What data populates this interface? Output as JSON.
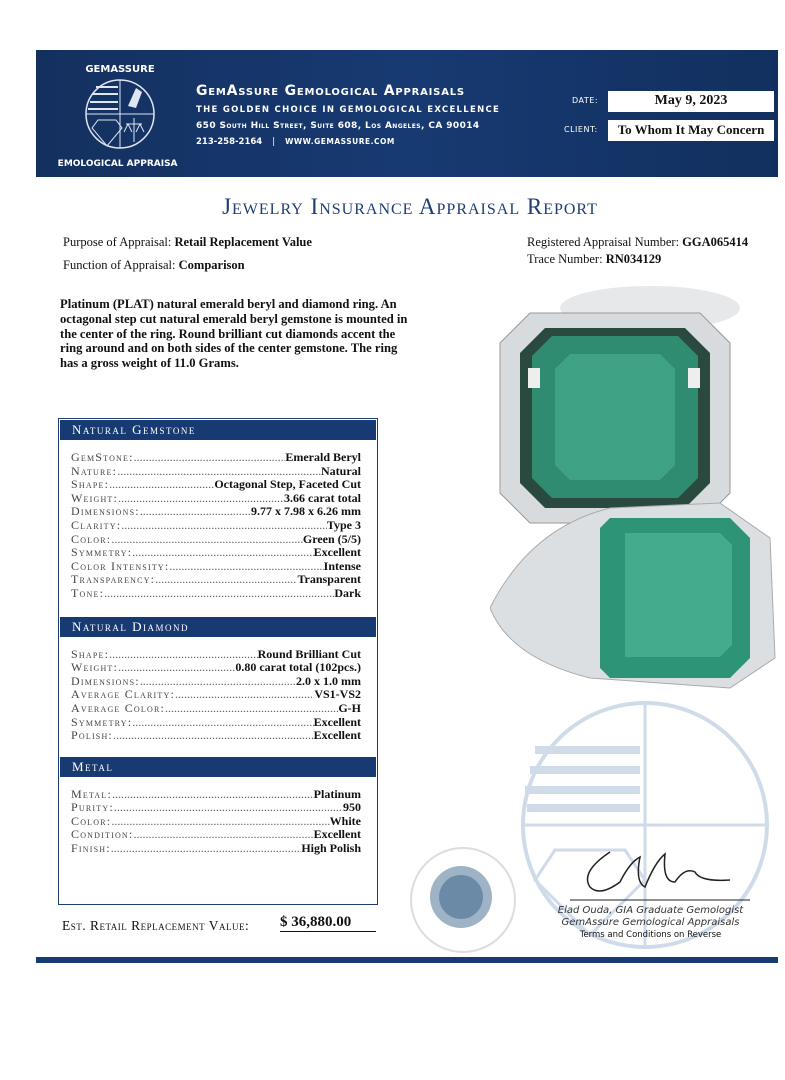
{
  "header": {
    "logo_text": "GemAssure Gemological Appraisals",
    "company": "GemAssure Gemological Appraisals",
    "tagline": "The Golden Choice in Gemological Excellence",
    "address": "650 South Hill Street, Suite 608, Los Angeles, CA 90014",
    "phone": "213-258-2164",
    "separator": "|",
    "website": "www.gemassure.com",
    "date_label": "DATE:",
    "date": "May 9, 2023",
    "client_label": "CLIENT:",
    "client": "To Whom It May Concern",
    "color": "#173a72"
  },
  "title": "Jewelry Insurance Appraisal Report",
  "meta": {
    "purpose_label": "Purpose of Appraisal:",
    "purpose": "Retail Replacement Value",
    "function_label": "Function of Appraisal:",
    "function": "Comparison",
    "reg_label": "Registered Appraisal Number:",
    "reg": "GGA065414",
    "trace_label": "Trace Number:",
    "trace": "RN034129"
  },
  "description": "Platinum (PLAT) natural emerald beryl and diamond ring. An octagonal step cut natural emerald beryl gemstone is mounted in the center of the ring. Round brilliant cut diamonds accent the ring around and on both sides of the center gemstone. The ring has a gross weight of 11.0 Grams.",
  "gemstone": {
    "title": "Natural Gemstone",
    "rows": [
      {
        "k": "GemStone:",
        "v": "Emerald Beryl"
      },
      {
        "k": "Nature:",
        "v": "Natural"
      },
      {
        "k": "Shape:",
        "v": "Octagonal Step, Faceted Cut"
      },
      {
        "k": "Weight:",
        "v": "3.66 carat total"
      },
      {
        "k": "Dimensions:",
        "v": "9.77 x 7.98 x 6.26 mm"
      },
      {
        "k": "Clarity:",
        "v": "Type 3"
      },
      {
        "k": "Color:",
        "v": "Green (5/5)"
      },
      {
        "k": "Symmetry:",
        "v": "Excellent"
      },
      {
        "k": "Color Intensity:",
        "v": "Intense"
      },
      {
        "k": "Transparency:",
        "v": "Transparent"
      },
      {
        "k": "Tone:",
        "v": "Dark"
      }
    ]
  },
  "diamond": {
    "title": "Natural Diamond",
    "rows": [
      {
        "k": "Shape:",
        "v": "Round Brilliant Cut"
      },
      {
        "k": "Weight:",
        "v": "0.80 carat total (102pcs.)"
      },
      {
        "k": "Dimensions:",
        "v": "2.0 x 1.0 mm"
      },
      {
        "k": "Average Clarity:",
        "v": "VS1-VS2"
      },
      {
        "k": "Average Color:",
        "v": "G-H"
      },
      {
        "k": "Symmetry:",
        "v": "Excellent"
      },
      {
        "k": "Polish:",
        "v": "Excellent"
      }
    ]
  },
  "metal": {
    "title": "Metal",
    "rows": [
      {
        "k": "Metal:",
        "v": "Platinum"
      },
      {
        "k": "Purity:",
        "v": "950"
      },
      {
        "k": "Color:",
        "v": "White"
      },
      {
        "k": "Condition:",
        "v": "Excellent"
      },
      {
        "k": "Finish:",
        "v": "High Polish"
      }
    ]
  },
  "value": {
    "label": "Est. Retail Replacement Value:",
    "amount": "$ 36,880.00"
  },
  "signature": {
    "name": "Elad Ouda, GIA Graduate Gemologist",
    "company": "GemAssure Gemological Appraisals",
    "terms": "Terms and Conditions on Reverse"
  }
}
